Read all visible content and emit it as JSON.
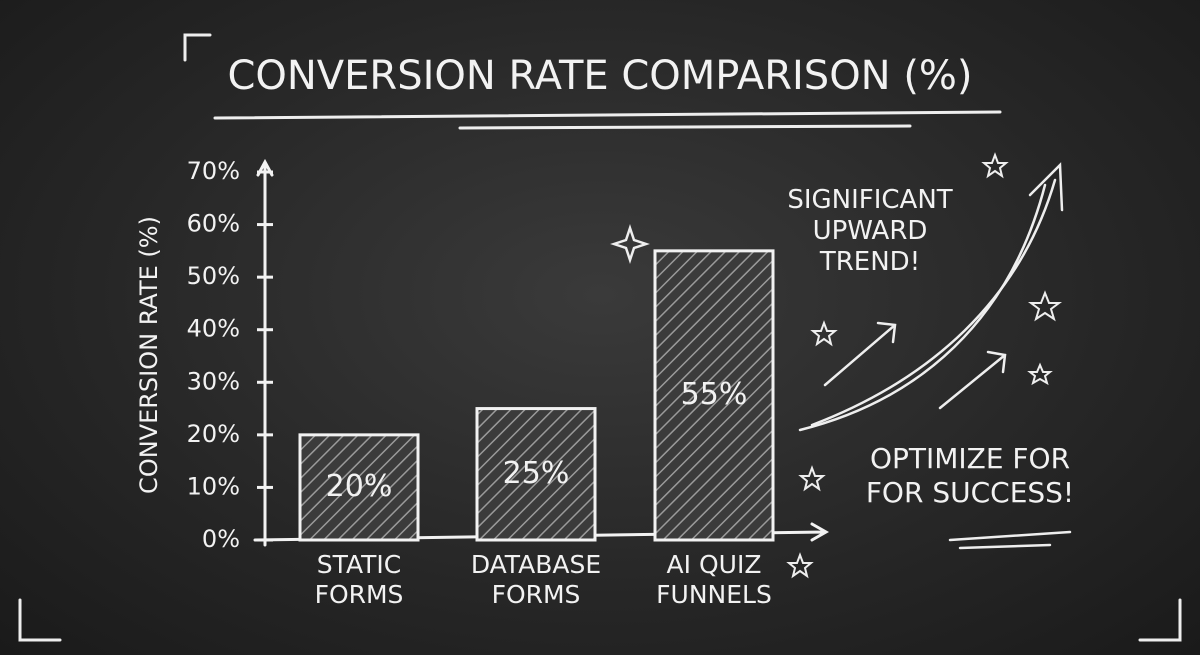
{
  "chart_data": {
    "type": "bar",
    "title": "CONVERSION RATE COMPARISON (%)",
    "y_label": "CONVERSION RATE (%)",
    "categories": [
      "STATIC FORMS",
      "DATABASE FORMS",
      "AI QUIZ FUNNELS"
    ],
    "values": [
      20,
      25,
      55
    ],
    "value_labels": [
      "20%",
      "25%",
      "55%"
    ],
    "color": "#f2f2f2",
    "ylim": [
      0,
      70
    ],
    "yticks": [
      {
        "value": 0,
        "label": "0%"
      },
      {
        "value": 10,
        "label": "10%"
      },
      {
        "value": 20,
        "label": "20%"
      },
      {
        "value": 30,
        "label": "30%"
      },
      {
        "value": 40,
        "label": "40%"
      },
      {
        "value": 50,
        "label": "50%"
      },
      {
        "value": 60,
        "label": "60%"
      },
      {
        "value": 70,
        "label": "70%"
      }
    ],
    "annotations": [
      "SIGNIFICANT UPWARD TREND!",
      "OPTIMIZE FOR FOR SUCCESS!"
    ]
  }
}
